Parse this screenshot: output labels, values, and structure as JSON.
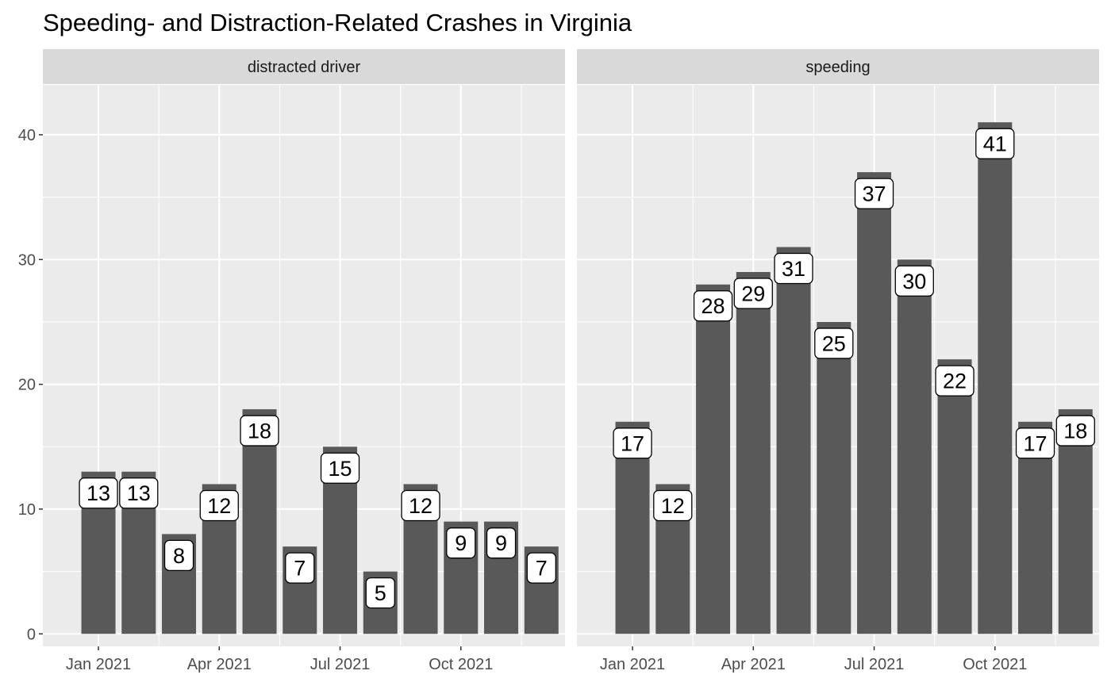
{
  "chart_data": {
    "type": "bar",
    "title": "Speeding- and Distraction-Related Crashes in Virginia",
    "xlabel": "",
    "ylabel": "",
    "ylim": [
      -1,
      44
    ],
    "y_ticks": [
      0,
      10,
      20,
      30,
      40
    ],
    "x_tick_labels": [
      "Jan 2021",
      "Apr 2021",
      "Jul 2021",
      "Oct 2021"
    ],
    "categories": [
      "2021-01",
      "2021-02",
      "2021-03",
      "2021-04",
      "2021-05",
      "2021-06",
      "2021-07",
      "2021-08",
      "2021-09",
      "2021-10",
      "2021-11",
      "2021-12"
    ],
    "grid": true,
    "bar_color": "#595959",
    "panel_background": "#ebebeb",
    "strip_background": "#d9d9d9",
    "facets": [
      {
        "name": "distracted driver",
        "values": [
          13,
          13,
          8,
          12,
          18,
          7,
          15,
          5,
          12,
          9,
          9,
          7
        ]
      },
      {
        "name": "speeding",
        "values": [
          17,
          12,
          28,
          29,
          31,
          25,
          37,
          30,
          22,
          41,
          17,
          18
        ]
      }
    ]
  }
}
